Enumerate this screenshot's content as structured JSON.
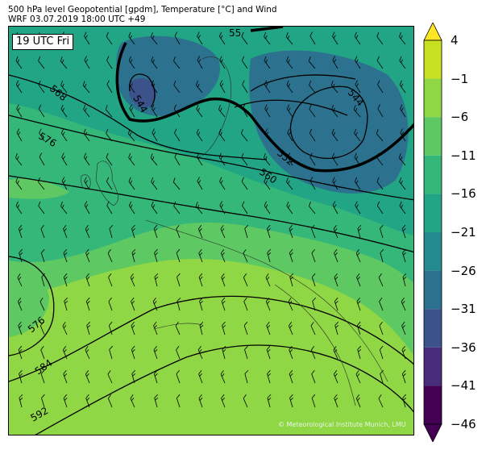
{
  "header": {
    "line1": "500 hPa level Geopotential [gpdm], Temperature [°C] and Wind",
    "line2": "WRF 03.07.2019 18:00 UTC +49"
  },
  "time_badge": "19 UTC Fri",
  "copyright": "© Meteorological Institute Munich, LMU",
  "colorbar": {
    "ticks": [
      "4",
      "−1",
      "−6",
      "−11",
      "−16",
      "−21",
      "−26",
      "−31",
      "−36",
      "−41",
      "−46"
    ],
    "colors": [
      "#fde725",
      "#c7e020",
      "#8fd744",
      "#5ec962",
      "#35b779",
      "#21a585",
      "#228b8d",
      "#2c728e",
      "#3b528b",
      "#472d7b",
      "#440154"
    ]
  },
  "contour_labels": [
    "568",
    "576",
    "544",
    "552",
    "560",
    "544",
    "576",
    "584",
    "592",
    "55"
  ],
  "colors": {
    "background_region": "#5ec962",
    "warm_region": "#8fd744",
    "cool_region": "#35b779",
    "cold_region": "#21a585",
    "core_region": "#2c728e"
  }
}
